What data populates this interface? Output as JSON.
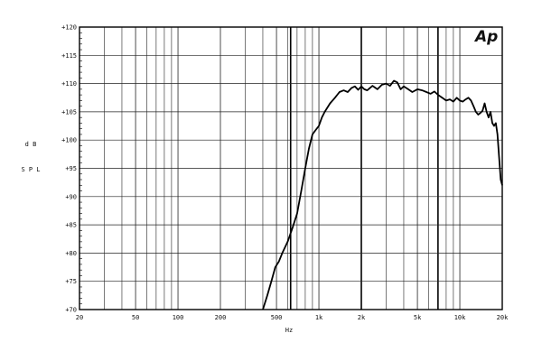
{
  "chart_data": {
    "type": "line",
    "xscale": "log",
    "xlim": [
      20,
      20000
    ],
    "ylim": [
      70,
      120
    ],
    "grid": true,
    "xlabel": "Hz",
    "ylabel_lines": [
      "d B",
      "S P L"
    ],
    "logo": "Ap",
    "x_ticks": [
      {
        "value": 20,
        "label": "20"
      },
      {
        "value": 50,
        "label": "50"
      },
      {
        "value": 100,
        "label": "100"
      },
      {
        "value": 200,
        "label": "200"
      },
      {
        "value": 500,
        "label": "500"
      },
      {
        "value": 1000,
        "label": "1k"
      },
      {
        "value": 2000,
        "label": "2k"
      },
      {
        "value": 5000,
        "label": "5k"
      },
      {
        "value": 10000,
        "label": "10k"
      },
      {
        "value": 20000,
        "label": "20k"
      }
    ],
    "y_ticks": [
      {
        "value": 120,
        "label": "+120"
      },
      {
        "value": 115,
        "label": "+115"
      },
      {
        "value": 110,
        "label": "+110"
      },
      {
        "value": 105,
        "label": "+105"
      },
      {
        "value": 100,
        "label": "+100"
      },
      {
        "value": 95,
        "label": "+95"
      },
      {
        "value": 90,
        "label": "+90"
      },
      {
        "value": 85,
        "label": "+85"
      },
      {
        "value": 80,
        "label": "+80"
      },
      {
        "value": 75,
        "label": "+75"
      },
      {
        "value": 70,
        "label": "+70"
      }
    ],
    "minor_x": [
      30,
      40,
      60,
      70,
      80,
      90,
      300,
      400,
      600,
      700,
      800,
      900,
      3000,
      4000,
      6000,
      7000,
      8000,
      9000
    ],
    "bold_x": [
      630,
      2000,
      7000
    ],
    "series": [
      {
        "x": [
          400,
          430,
          460,
          490,
          520,
          550,
          600,
          650,
          700,
          750,
          800,
          850,
          900,
          950,
          1000,
          1050,
          1100,
          1200,
          1300,
          1400,
          1500,
          1600,
          1700,
          1800,
          1900,
          2000,
          2100,
          2200,
          2400,
          2600,
          2800,
          3000,
          3200,
          3400,
          3600,
          3800,
          4000,
          4300,
          4600,
          5000,
          5400,
          5800,
          6200,
          6600,
          7000,
          7500,
          8000,
          8500,
          9000,
          9500,
          10000,
          10500,
          11000,
          11500,
          12000,
          12500,
          13000,
          13500,
          14000,
          14500,
          15000,
          15500,
          16000,
          16500,
          17000,
          17500,
          18000,
          18500,
          19000,
          19500,
          20000
        ],
        "y": [
          70.0,
          72.5,
          75.0,
          77.5,
          78.5,
          80.0,
          82.0,
          84.5,
          87.0,
          91.0,
          95.0,
          98.5,
          101.0,
          101.8,
          102.5,
          104.0,
          105.0,
          106.5,
          107.5,
          108.5,
          108.8,
          108.5,
          109.2,
          109.5,
          108.9,
          109.5,
          109.0,
          108.8,
          109.6,
          109.0,
          109.8,
          110.0,
          109.6,
          110.5,
          110.2,
          109.0,
          109.5,
          109.0,
          108.5,
          109.0,
          108.8,
          108.5,
          108.2,
          108.6,
          108.0,
          107.5,
          107.0,
          107.2,
          106.8,
          107.5,
          107.0,
          106.8,
          107.2,
          107.5,
          107.0,
          106.0,
          105.0,
          104.5,
          104.8,
          105.2,
          106.5,
          105.0,
          104.0,
          105.0,
          103.0,
          102.5,
          103.0,
          101.0,
          97.0,
          93.0,
          92.0
        ]
      }
    ]
  }
}
